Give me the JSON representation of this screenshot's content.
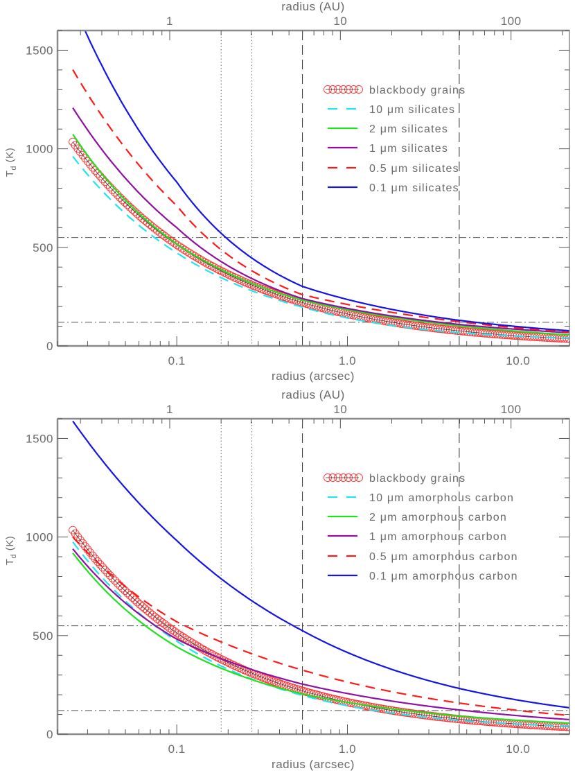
{
  "chart_data": [
    {
      "type": "line",
      "xlabel": "radius (arcsec)",
      "xlabel_top": "radius (AU)",
      "ylabel": "T",
      "ylabel_sub": "d",
      "ylabel_unit": " (K)",
      "x_scale": "log",
      "xlim": [
        0.02,
        20
      ],
      "xlim_top": [
        0.22,
        220
      ],
      "ylim": [
        0,
        1600
      ],
      "x_ticks": [
        {
          "v": 0.1,
          "label": "0.1"
        },
        {
          "v": 1,
          "label": "1.0"
        },
        {
          "v": 10,
          "label": "10.0"
        }
      ],
      "x_top_ticks": [
        {
          "v": 1,
          "label": "1"
        },
        {
          "v": 10,
          "label": "10"
        },
        {
          "v": 100,
          "label": "100"
        }
      ],
      "y_ticks": [
        {
          "v": 0,
          "label": "0"
        },
        {
          "v": 500,
          "label": "500"
        },
        {
          "v": 1000,
          "label": "1000"
        },
        {
          "v": 1500,
          "label": "1500"
        }
      ],
      "grid": false,
      "legend_placement": "upper-right",
      "vlines": [
        {
          "x": 0.182,
          "style": "dotted"
        },
        {
          "x": 0.275,
          "style": "dotted"
        },
        {
          "x": 0.545,
          "style": "dashed"
        },
        {
          "x": 4.52,
          "style": "dashed"
        }
      ],
      "hlines": [
        {
          "y": 550,
          "style": "dashdot"
        },
        {
          "y": 120,
          "style": "dashdot"
        }
      ],
      "x": [
        0.0246,
        0.1,
        0.545,
        4.52,
        20
      ],
      "series": [
        {
          "name": "blackbody grains",
          "color": "#ff3030",
          "style": "circles",
          "values": [
            1035,
            513,
            220,
            76,
            36
          ]
        },
        {
          "name": "10 μm silicates",
          "color": "#20e4f4",
          "style": "dashed",
          "values": [
            961,
            472,
            197,
            67,
            39
          ]
        },
        {
          "name": "2 μm silicates",
          "color": "#20e020",
          "style": "solid",
          "values": [
            1074,
            517,
            232,
            102,
            56
          ]
        },
        {
          "name": "1 μm silicates",
          "color": "#9010a0",
          "style": "solid",
          "values": [
            1208,
            600,
            240,
            109,
            67
          ]
        },
        {
          "name": "0.5 μm silicates",
          "color": "#ff1a1a",
          "style": "dashed",
          "values": [
            1401,
            711,
            260,
            123,
            70
          ]
        },
        {
          "name": "0.1 μm silicates",
          "color": "#1414e6",
          "style": "solid",
          "values": [
            1740,
            831,
            302,
            130,
            77
          ]
        }
      ]
    },
    {
      "type": "line",
      "xlabel": "radius (arcsec)",
      "xlabel_top": "radius (AU)",
      "ylabel": "T",
      "ylabel_sub": "d",
      "ylabel_unit": " (K)",
      "x_scale": "log",
      "xlim": [
        0.02,
        20
      ],
      "xlim_top": [
        0.22,
        220
      ],
      "ylim": [
        0,
        1600
      ],
      "x_ticks": [
        {
          "v": 0.1,
          "label": "0.1"
        },
        {
          "v": 1,
          "label": "1.0"
        },
        {
          "v": 10,
          "label": "10.0"
        }
      ],
      "x_top_ticks": [
        {
          "v": 1,
          "label": "1"
        },
        {
          "v": 10,
          "label": "10"
        },
        {
          "v": 100,
          "label": "100"
        }
      ],
      "y_ticks": [
        {
          "v": 0,
          "label": "0"
        },
        {
          "v": 500,
          "label": "500"
        },
        {
          "v": 1000,
          "label": "1000"
        },
        {
          "v": 1500,
          "label": "1500"
        }
      ],
      "grid": false,
      "legend_placement": "upper-right",
      "vlines": [
        {
          "x": 0.182,
          "style": "dotted"
        },
        {
          "x": 0.275,
          "style": "dotted"
        },
        {
          "x": 0.545,
          "style": "dashed"
        },
        {
          "x": 4.52,
          "style": "dashed"
        }
      ],
      "hlines": [
        {
          "y": 550,
          "style": "dashdot"
        },
        {
          "y": 120,
          "style": "dashdot"
        }
      ],
      "x": [
        0.0246,
        0.1,
        0.545,
        4.52,
        20
      ],
      "series": [
        {
          "name": "blackbody grains",
          "color": "#ff3030",
          "style": "circles",
          "values": [
            1035,
            513,
            220,
            76,
            36
          ]
        },
        {
          "name": "10 μm amorphous carbon",
          "color": "#20e4f4",
          "style": "dashed",
          "values": [
            975,
            472,
            197,
            70,
            40
          ]
        },
        {
          "name": "2 μm amorphous carbon",
          "color": "#20e020",
          "style": "solid",
          "values": [
            919,
            443,
            204,
            92,
            56
          ]
        },
        {
          "name": "1 μm amorphous carbon",
          "color": "#9010a0",
          "style": "solid",
          "values": [
            940,
            482,
            254,
            123,
            74
          ]
        },
        {
          "name": "0.5 μm amorphous carbon",
          "color": "#ff1a1a",
          "style": "dashed",
          "values": [
            1000,
            570,
            325,
            158,
            95
          ]
        },
        {
          "name": "0.1 μm amorphous carbon",
          "color": "#1414e6",
          "style": "solid",
          "values": [
            1588,
            982,
            525,
            232,
            134
          ]
        }
      ]
    }
  ]
}
